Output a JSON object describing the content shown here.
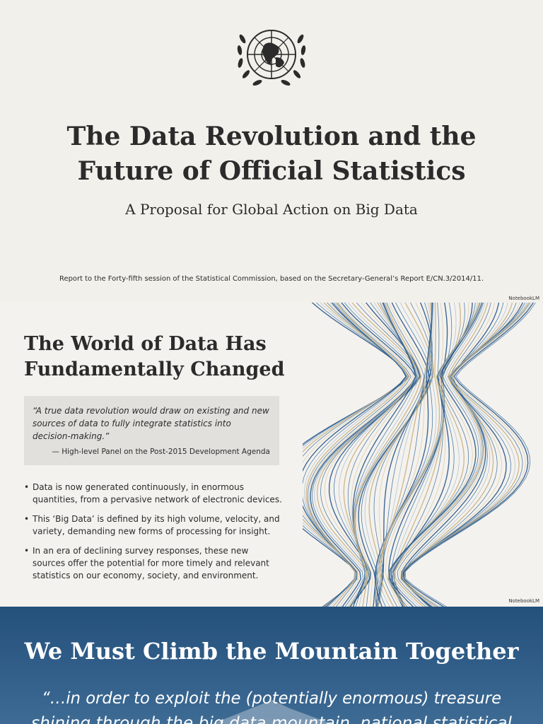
{
  "slides": [
    {
      "title_lines": [
        "The Data Revolution and the",
        "Future of Official Statistics"
      ],
      "subtitle": "A Proposal for Global Action on Big Data",
      "note": "Report to the Forty-fifth session of the Statistical Commission, based on the Secretary-General’s Report E/CN.3/2014/11.",
      "watermark": "NotebookLM"
    },
    {
      "heading_lines": [
        "The World of Data Has",
        "Fundamentally Changed"
      ],
      "quote": {
        "lines": [
          "“A true data revolution would draw on existing and new",
          "sources of data to fully integrate statistics into",
          "decision-making.”"
        ],
        "attribution": "— High-level Panel on the Post-2015 Development Agenda"
      },
      "bullets": [
        [
          "Data is now generated continuously, in enormous",
          "quantities, from a pervasive network of electronic devices."
        ],
        [
          "This ‘Big Data’ is defined by its high volume, velocity, and",
          "variety, demanding new forms of processing for insight."
        ],
        [
          "In an era of declining survey responses, these new",
          "sources offer the potential for more timely and relevant",
          "statistics on our economy, society, and environment."
        ]
      ],
      "watermark": "NotebookLM"
    },
    {
      "title": "We Must Climb the Mountain Together",
      "quote_lines": [
        "“…in order to exploit the (potentially enormous) treasure",
        "shining through the big data mountain, national statistical"
      ]
    }
  ]
}
